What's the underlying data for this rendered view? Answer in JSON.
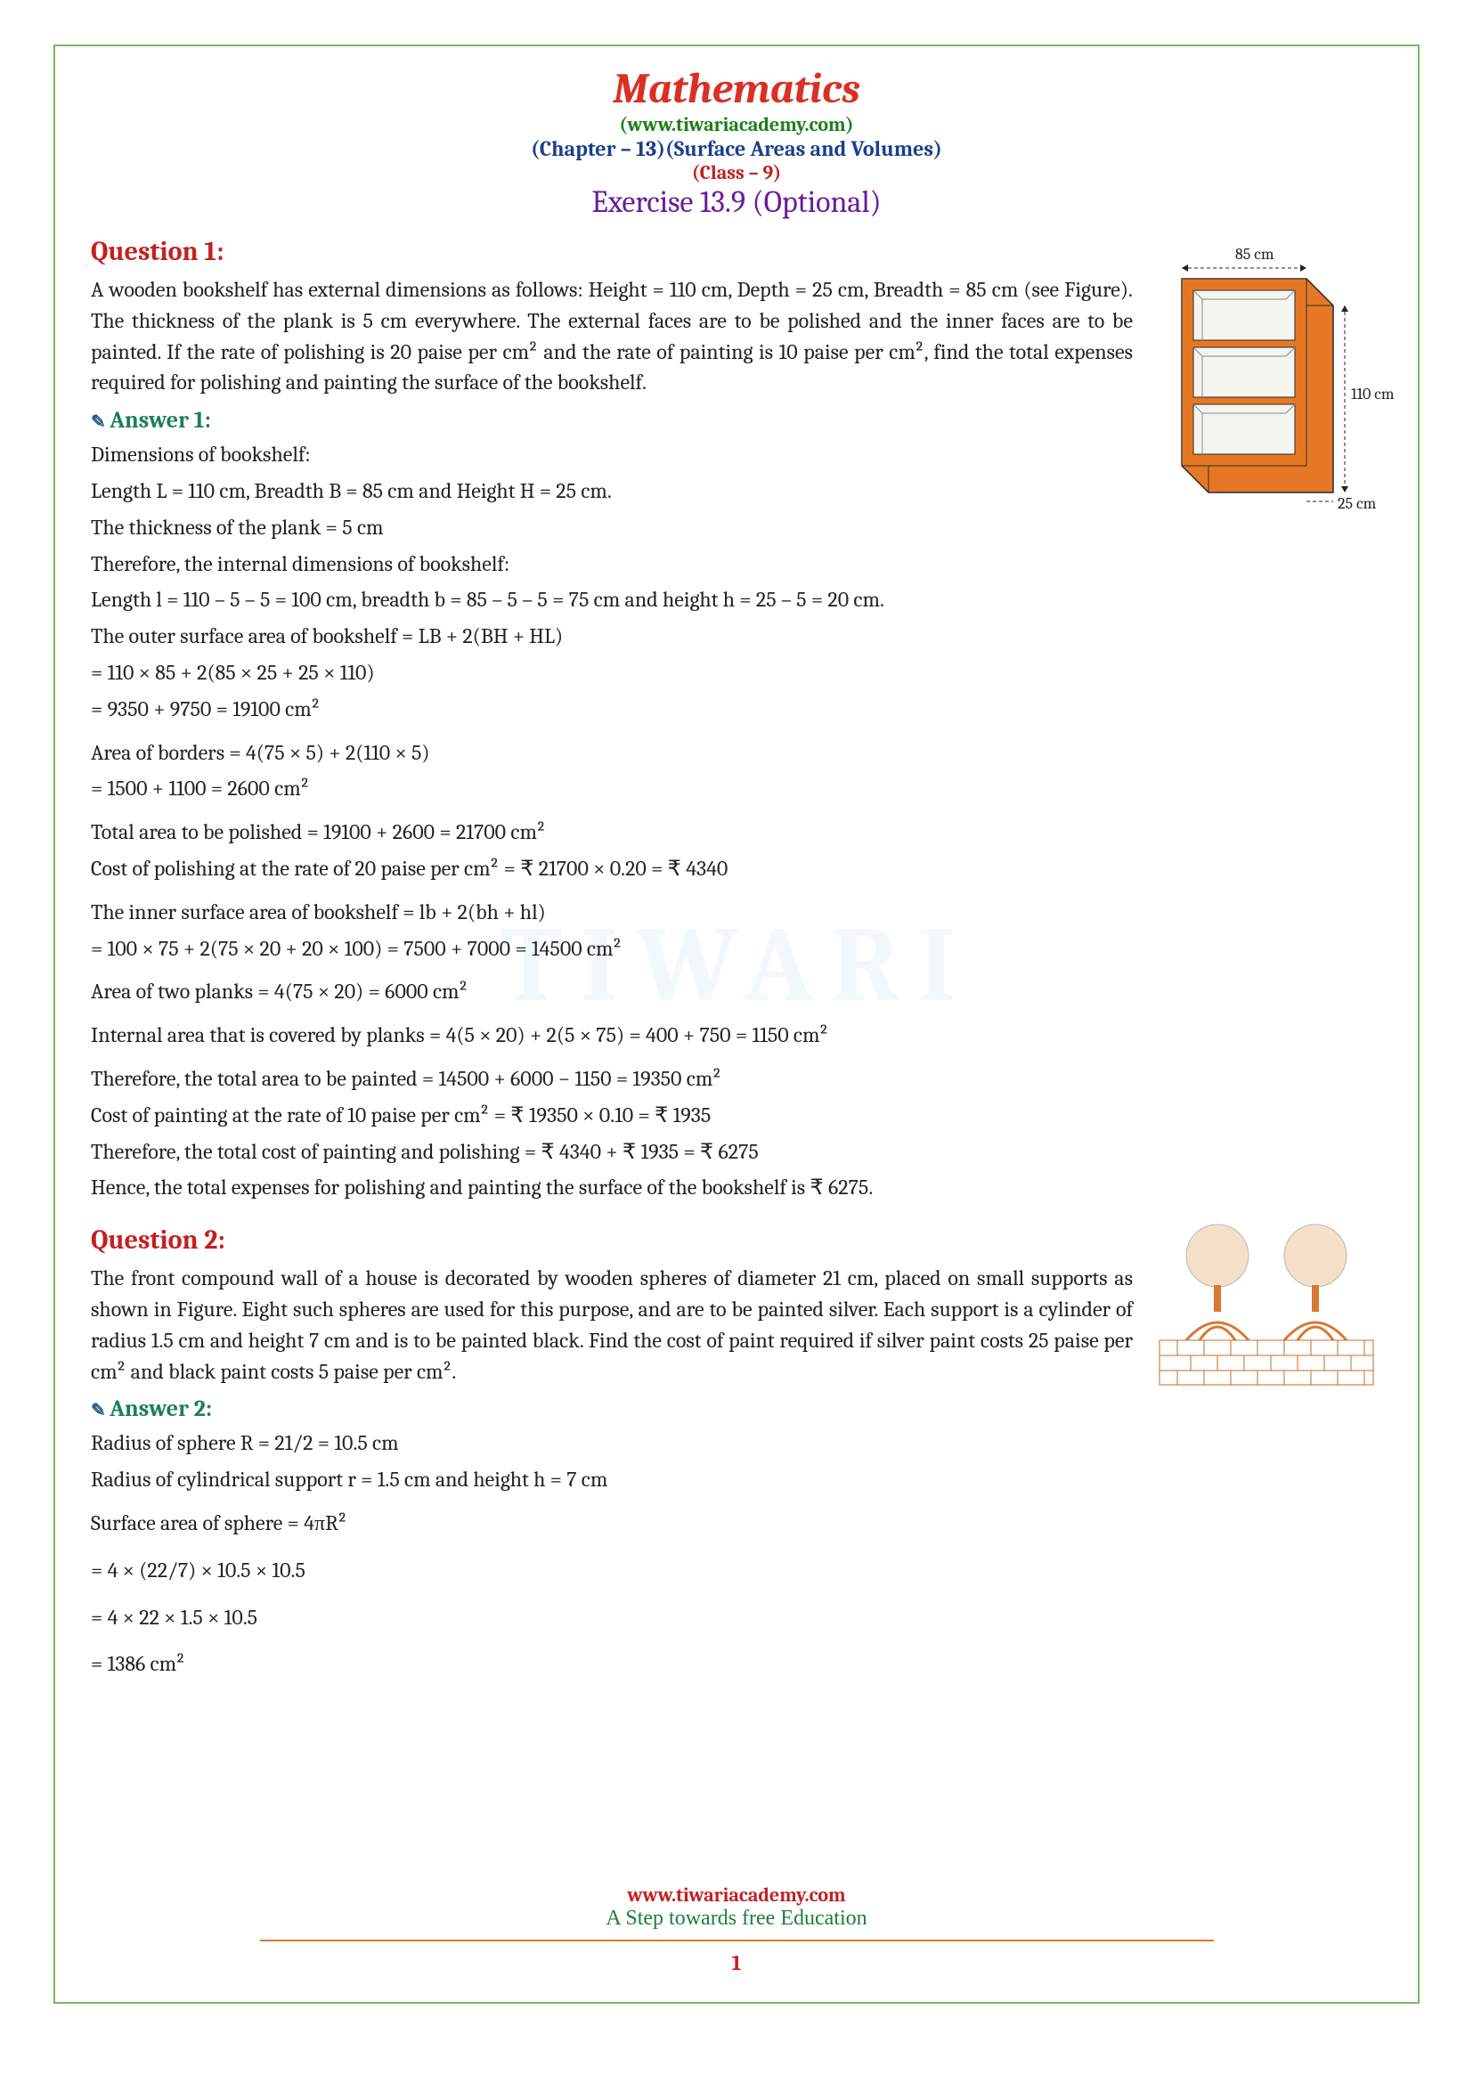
{
  "header": {
    "title": "Mathematics",
    "site": "(www.tiwariacademy.com)",
    "chapter": "(Chapter – 13)(Surface Areas and Volumes)",
    "class_line": "(Class – 9)",
    "exercise": "Exercise 13.9 (Optional)"
  },
  "q1": {
    "title": "Question 1:",
    "text": "A wooden bookshelf has external dimensions as follows: Height = 110 cm, Depth = 25 cm, Breadth = 85 cm (see Figure). The thickness of the plank is 5 cm everywhere. The external faces are to be polished and the inner faces are to be painted. If the rate of polishing is 20 paise per cm² and the rate of painting is 10 paise per cm², find the total expenses required for polishing and painting the surface of the bookshelf.",
    "answer_title": "Answer 1:",
    "lines": [
      "Dimensions of bookshelf:",
      "Length L = 110 cm, Breadth B = 85 cm and Height H = 25 cm.",
      "The thickness of the plank = 5 cm",
      "Therefore, the internal dimensions of bookshelf:",
      "Length l = 110 – 5 – 5 = 100 cm, breadth b = 85 – 5 – 5 = 75 cm and height h = 25 – 5 = 20 cm.",
      "The outer surface area of bookshelf = LB + 2(BH + HL)",
      "= 110 × 85 + 2(85 × 25 + 25 × 110)",
      "= 9350 + 9750 = 19100 cm²",
      "Area of borders  = 4(75 × 5) + 2(110 × 5)",
      "= 1500 + 1100 = 2600 cm²",
      "Total area to be polished = 19100 + 2600 = 21700 cm²",
      "Cost of polishing at the rate of 20 paise per cm² = ₹ 21700 × 0.20 = ₹ 4340",
      "The inner surface area of bookshelf = lb + 2(bh + hl)",
      "= 100 × 75 + 2(75 × 20 + 20 × 100) = 7500 + 7000 = 14500 cm²",
      "Area of two planks = 4(75 × 20) = 6000 cm²",
      "Internal area that is covered by planks = 4(5 × 20) + 2(5 × 75) = 400 + 750 = 1150 cm²",
      "Therefore, the total area to be painted = 14500 + 6000 − 1150 = 19350 cm²",
      "Cost of painting at the rate of 10 paise per cm² = ₹ 19350 × 0.10 = ₹ 1935",
      "Therefore, the total cost of painting and polishing = ₹ 4340 + ₹ 1935 = ₹ 6275",
      "Hence, the total expenses for polishing and painting the surface of the bookshelf is ₹ 6275."
    ],
    "diagram": {
      "labels": {
        "top": "85 cm",
        "right": "110 cm",
        "bottom": "25 cm"
      },
      "colors": {
        "wood": "#e67825",
        "inner": "#f5f5f0",
        "line": "#2a2a2a"
      }
    }
  },
  "q2": {
    "title": "Question 2:",
    "text": "The front compound wall of a house is decorated by wooden spheres of diameter 21 cm, placed on small supports as shown in Figure. Eight such spheres are used for this purpose, and are to be painted silver. Each support is a cylinder of radius 1.5 cm and height 7 cm and is to be painted black. Find the cost of paint required if silver paint costs 25 paise per cm² and black paint costs 5 paise per cm².",
    "answer_title": "Answer 2:",
    "lines": [
      "Radius of sphere R = 21/2 = 10.5 cm",
      "Radius of cylindrical support r = 1.5 cm and height h = 7 cm",
      "Surface area of sphere = 4πR²",
      "= 4 × (22/7) × 10.5 × 10.5",
      "= 4 × 22 × 1.5 × 10.5",
      "= 1386 cm²"
    ],
    "diagram": {
      "colors": {
        "sphere": "#f4e0c8",
        "support": "#d97830",
        "brick_line": "#c96a2a",
        "brick_fill": "#ffffff"
      }
    }
  },
  "footer": {
    "link": "www.tiwariacademy.com",
    "tagline": "A Step towards free Education",
    "page": "1"
  },
  "watermark": "TIWARI"
}
